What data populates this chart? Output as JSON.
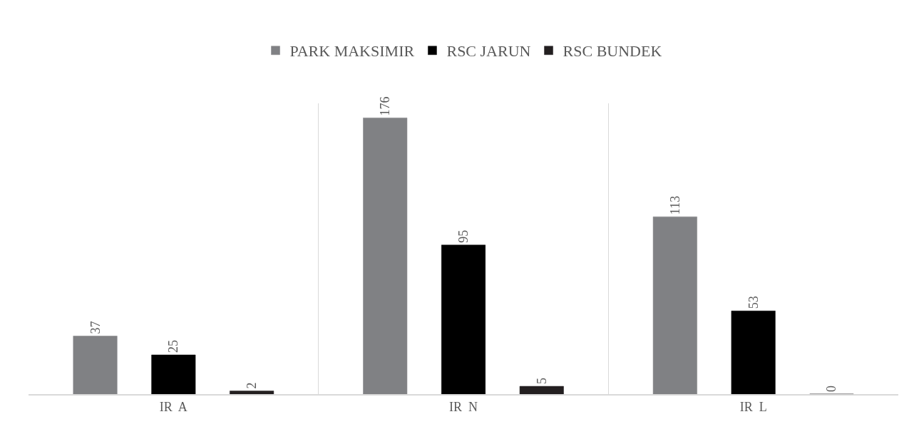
{
  "chart_data": {
    "type": "bar",
    "categories": [
      "IR  A",
      "IR  N",
      "IR  L"
    ],
    "series": [
      {
        "name": "PARK MAKSIMIR",
        "color": "#808184",
        "values": [
          37,
          176,
          113
        ]
      },
      {
        "name": "RSC JARUN",
        "color": "#000000",
        "values": [
          25,
          95,
          53
        ]
      },
      {
        "name": "RSC BUNDEK",
        "color": "#231f20",
        "values": [
          2,
          5,
          0
        ]
      }
    ],
    "data_labels": true,
    "grid": "x",
    "legend": "top",
    "tick_labels": "x"
  }
}
